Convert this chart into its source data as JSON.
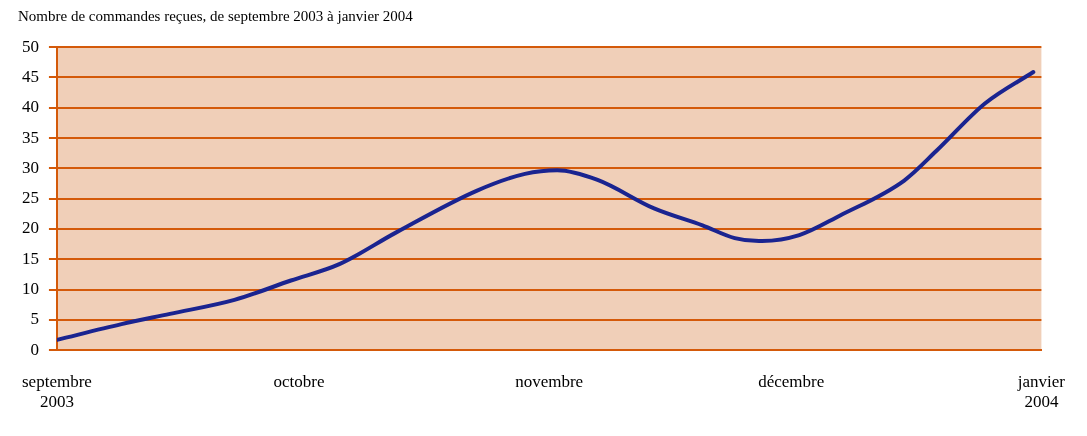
{
  "chart_data": {
    "type": "line",
    "title": "Nombre de commandes reçues, de septembre 2003 à janvier 2004",
    "x": [
      "2003-09-01",
      "2003-09-09",
      "2003-09-15",
      "2003-09-23",
      "2003-09-30",
      "2003-10-06",
      "2003-10-13",
      "2003-10-23",
      "2003-10-29",
      "2003-11-02",
      "2003-11-07",
      "2003-11-14",
      "2003-11-20",
      "2003-11-24",
      "2003-11-27",
      "2003-12-02",
      "2003-12-07",
      "2003-12-15",
      "2003-12-19",
      "2003-12-25",
      "2003-12-31"
    ],
    "series": [
      {
        "color": "#1a2490",
        "values": [
          1.7,
          4.3,
          6.0,
          8.3,
          11.5,
          14.2,
          19.4,
          26.3,
          29.1,
          29.7,
          28.1,
          23.4,
          20.6,
          18.5,
          18.0,
          19.0,
          22.2,
          28.0,
          32.9,
          40.7,
          45.9
        ]
      }
    ],
    "xlim": [
      "2003-09-01",
      "2004-01-01"
    ],
    "xticks": [
      {
        "value": "2003-09",
        "label": "septembre\n2003"
      },
      {
        "value": "2003-10",
        "label": "octobre"
      },
      {
        "value": "2003-11",
        "label": "novembre"
      },
      {
        "value": "2003-12",
        "label": "décembre"
      },
      {
        "value": "2004-01",
        "label": "janvier\n2004"
      }
    ],
    "ylim": [
      0,
      50
    ],
    "yticks": [
      0,
      5,
      10,
      15,
      20,
      25,
      30,
      35,
      40,
      45,
      50
    ],
    "grid": "y",
    "legend": false,
    "marker": "none",
    "line_style": "solid"
  }
}
